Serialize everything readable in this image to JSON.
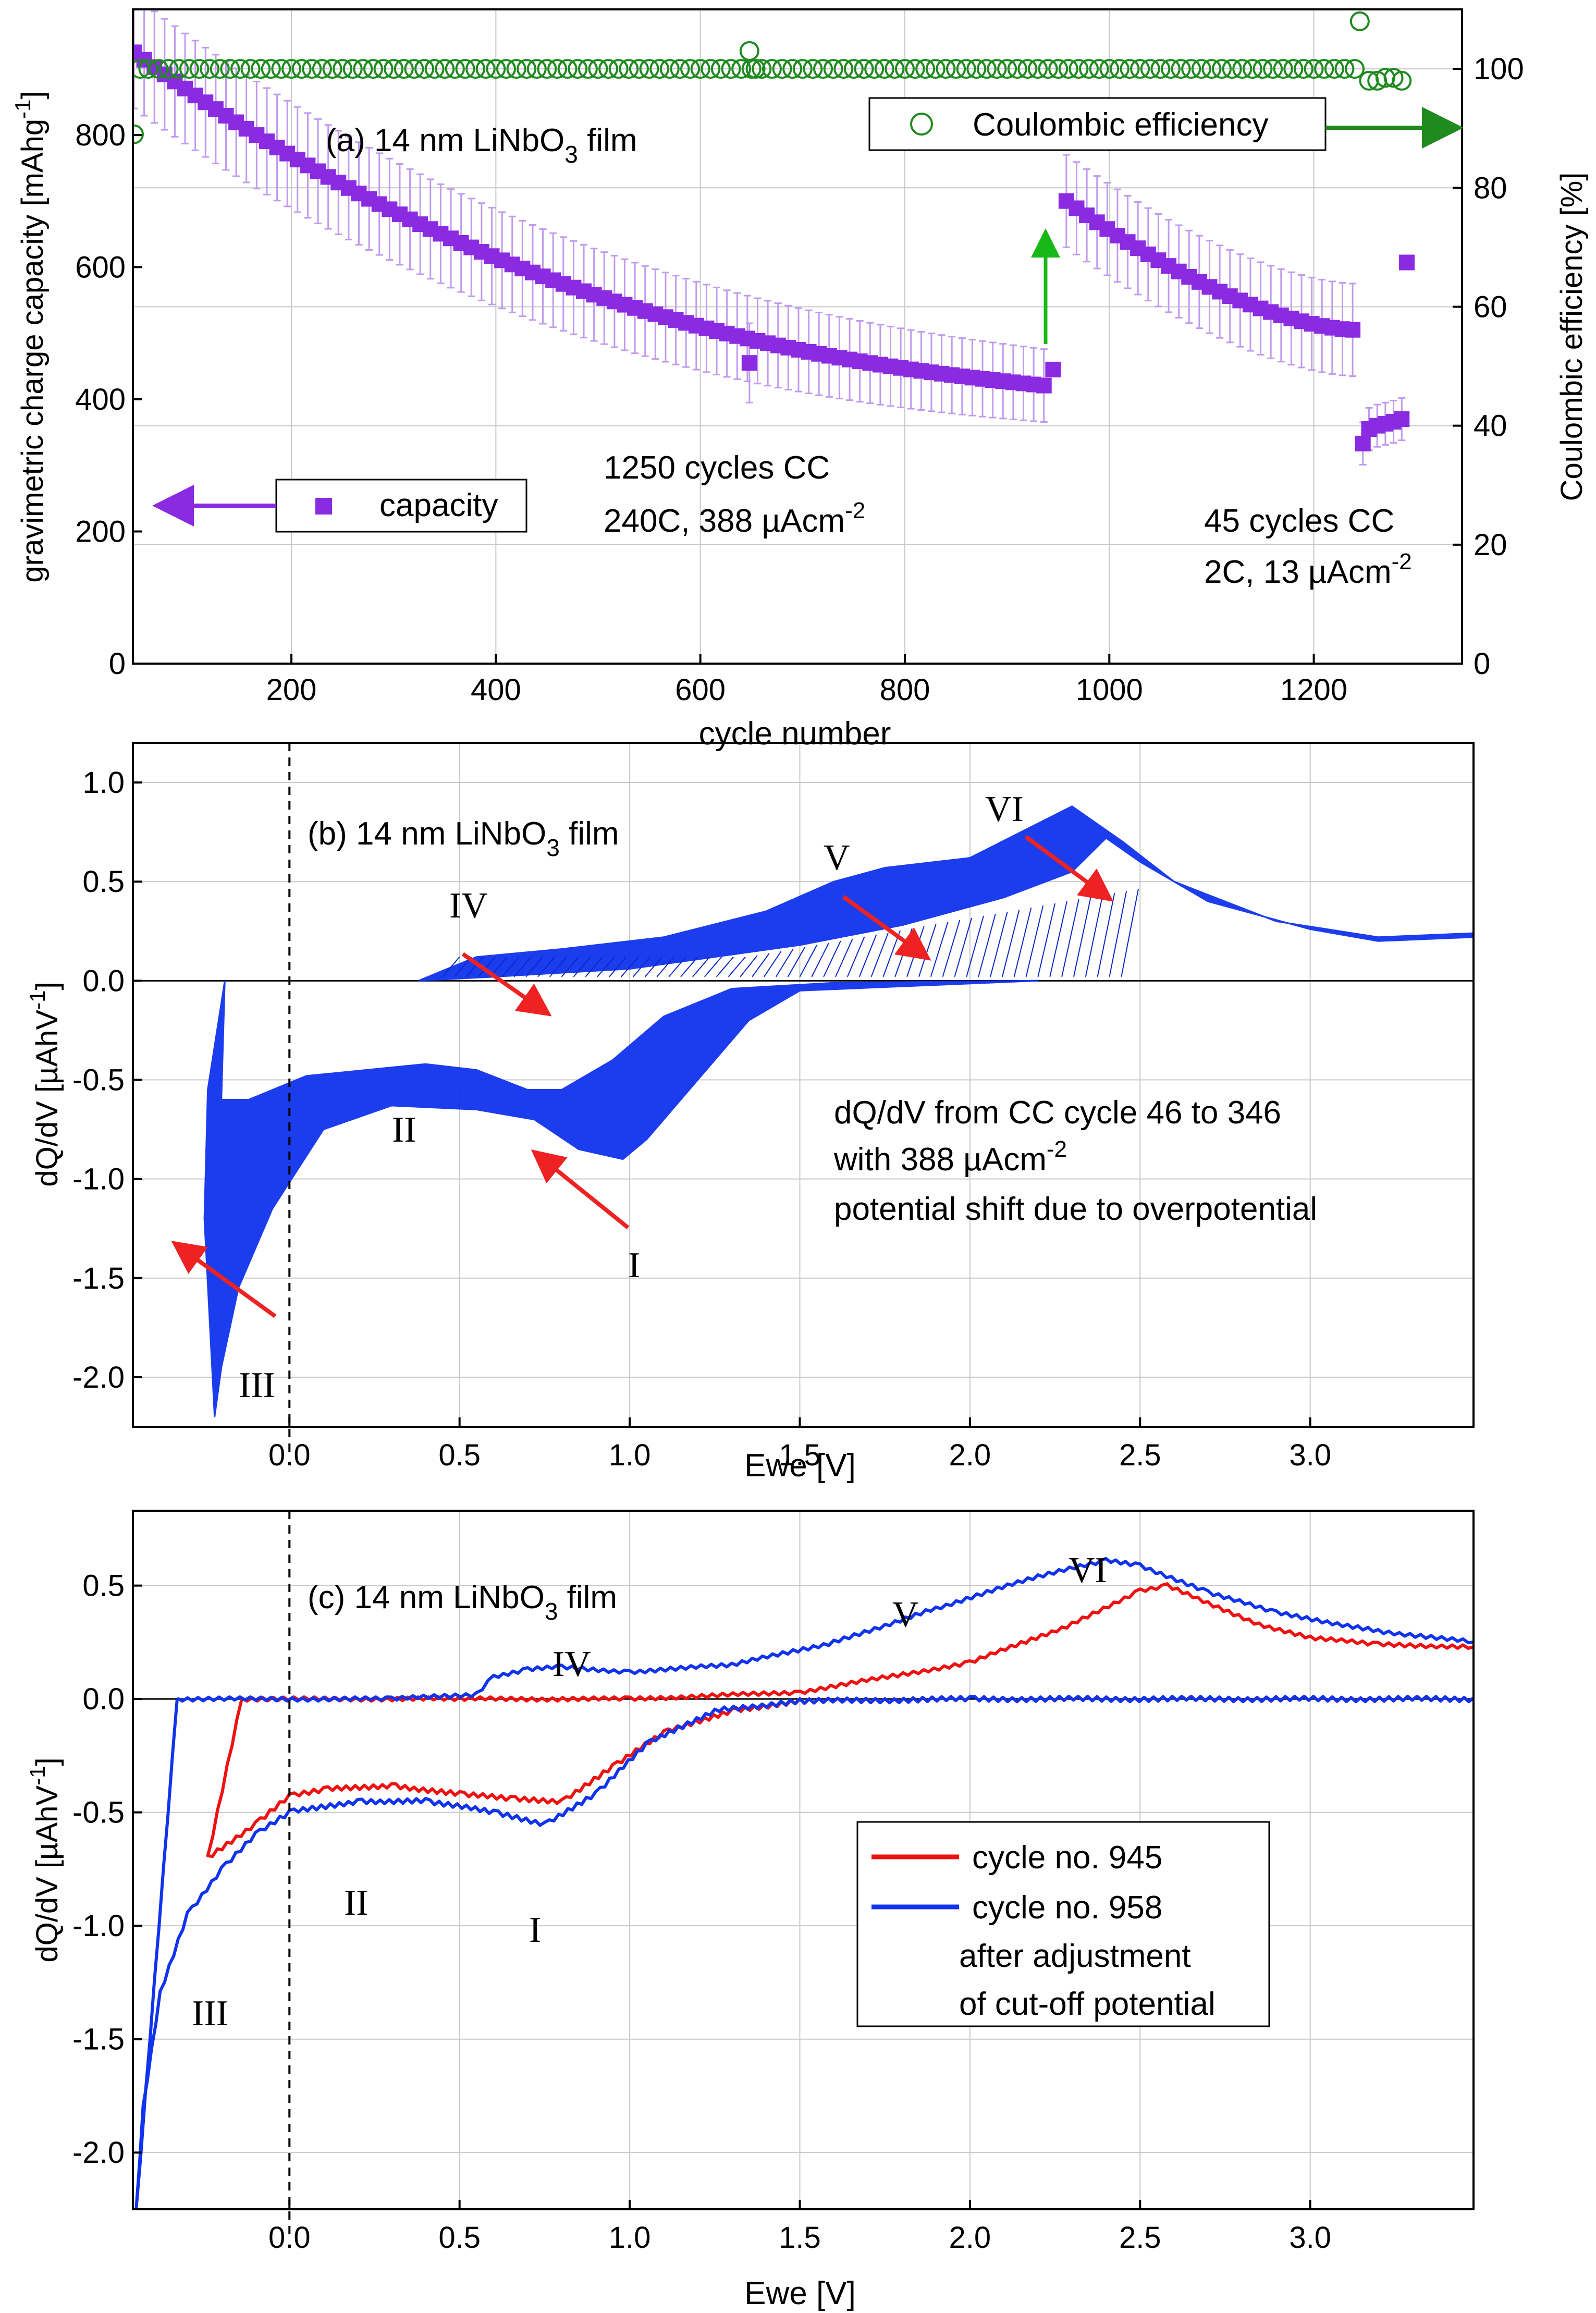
{
  "colors": {
    "capacity": "#8a2be2",
    "capacity_err": "#c09af2",
    "coulombic": "#1f8a1f",
    "arrow_green": "#17b817",
    "arrow_red": "#ee2222",
    "blue": "#1033ee",
    "red": "#ee1111"
  },
  "chart_data": [
    {
      "id": "a",
      "type": "scatter",
      "title_prefix": "(a) 14 nm LiNbO",
      "title_sub": "3",
      "title_suffix": " film",
      "xlabel": "cycle number",
      "ylabel": "gravimetric charge capacity [mAhg",
      "ylabel_sup": "-1",
      "ylabel_end": "]",
      "y2label": "Coulombic efficiency [%]",
      "xlim": [
        45,
        1345
      ],
      "ylim": [
        0,
        990
      ],
      "y2lim": [
        0,
        110
      ],
      "xticks": [
        200,
        400,
        600,
        800,
        1000,
        1200
      ],
      "yticks": [
        0,
        200,
        400,
        600,
        800
      ],
      "y2ticks": [
        0,
        20,
        40,
        60,
        80,
        100
      ],
      "legend_capacity": "capacity",
      "legend_coulombic": "Coulombic efficiency",
      "annot_1250_line1": "1250 cycles CC",
      "annot_1250_line2a": "240C, 388 µAcm",
      "annot_1250_line2sup": "-2",
      "annot_45_line1": "45 cycles CC",
      "annot_45_line2a": "2C, 13 µAcm",
      "annot_45_line2sup": "-2",
      "capacity_segment1": {
        "x_start": 46,
        "x_end": 941,
        "y_start": 925,
        "y_end": 420
      },
      "capacity_outlier": {
        "x": 648,
        "y": 455
      },
      "capacity_jump_point": {
        "x": 945,
        "y": 445
      },
      "capacity_segment2": {
        "x_start": 958,
        "x_end": 1240,
        "y_start": 700,
        "y_end": 505
      },
      "capacity_segment3": [
        [
          1248,
          333
        ],
        [
          1254,
          355
        ],
        [
          1262,
          360
        ],
        [
          1270,
          363
        ],
        [
          1278,
          366
        ],
        [
          1286,
          370
        ]
      ],
      "capacity_outlier2": {
        "x": 1291,
        "y": 607
      },
      "coulombic_main": 100,
      "coulombic_outliers": [
        [
          46,
          89
        ],
        [
          52,
          100
        ],
        [
          648,
          103
        ],
        [
          654,
          100
        ],
        [
          1245,
          108
        ],
        [
          1254,
          98
        ],
        [
          1262,
          98
        ],
        [
          1270,
          98.5
        ],
        [
          1278,
          98.5
        ],
        [
          1286,
          98
        ]
      ]
    },
    {
      "id": "b",
      "type": "line",
      "title_prefix": "(b) 14 nm LiNbO",
      "title_sub": "3",
      "title_suffix": " film",
      "xlabel": "Ewe [V]",
      "ylabel": "dQ/dV  [µAhV",
      "ylabel_sup": "-1",
      "ylabel_end": "]",
      "xlim": [
        -0.46,
        3.48
      ],
      "ylim": [
        -2.25,
        1.2
      ],
      "xticks": [
        "0.0",
        "0.5",
        "1.0",
        "1.5",
        "2.0",
        "2.5",
        "3.0"
      ],
      "yticks": [
        "1.0",
        "0.5",
        "0.0",
        "-0.5",
        "-1.0",
        "-1.5",
        "-2.0"
      ],
      "annotation_lines": [
        "dQ/dV from CC cycle 46 to 346",
        "with 388 µAcm",
        "potential shift due to overpotential"
      ],
      "annotation_sup": "-2",
      "peak_labels": [
        "I",
        "II",
        "III",
        "IV",
        "V",
        "VI"
      ],
      "band_upper_top": [
        [
          0.38,
          0.0
        ],
        [
          0.45,
          0.05
        ],
        [
          0.55,
          0.12
        ],
        [
          0.8,
          0.16
        ],
        [
          1.1,
          0.22
        ],
        [
          1.4,
          0.35
        ],
        [
          1.6,
          0.5
        ],
        [
          1.75,
          0.57
        ],
        [
          2.0,
          0.62
        ],
        [
          2.15,
          0.75
        ],
        [
          2.3,
          0.88
        ],
        [
          2.45,
          0.7
        ],
        [
          2.6,
          0.5
        ],
        [
          2.9,
          0.3
        ],
        [
          3.2,
          0.22
        ],
        [
          3.48,
          0.24
        ]
      ],
      "band_upper_bottom": [
        [
          0.38,
          0.0
        ],
        [
          0.6,
          0.02
        ],
        [
          1.0,
          0.06
        ],
        [
          1.5,
          0.18
        ],
        [
          1.8,
          0.28
        ],
        [
          2.1,
          0.42
        ],
        [
          2.3,
          0.55
        ],
        [
          2.4,
          0.72
        ],
        [
          2.5,
          0.6
        ],
        [
          2.7,
          0.4
        ],
        [
          3.0,
          0.26
        ],
        [
          3.2,
          0.2
        ],
        [
          3.48,
          0.22
        ]
      ],
      "band_lower_top": [
        [
          -0.24,
          -0.55
        ],
        [
          -0.19,
          0.0
        ],
        [
          -0.2,
          -0.6
        ],
        [
          -0.12,
          -0.6
        ],
        [
          0.05,
          -0.48
        ],
        [
          0.4,
          -0.42
        ],
        [
          0.55,
          -0.45
        ],
        [
          0.7,
          -0.55
        ],
        [
          0.8,
          -0.55
        ],
        [
          0.95,
          -0.4
        ],
        [
          1.1,
          -0.18
        ],
        [
          1.3,
          -0.04
        ],
        [
          1.6,
          -0.01
        ],
        [
          2.2,
          0.0
        ]
      ],
      "band_lower_bottom": [
        [
          2.2,
          0.0
        ],
        [
          1.5,
          -0.05
        ],
        [
          1.35,
          -0.2
        ],
        [
          1.2,
          -0.5
        ],
        [
          1.05,
          -0.8
        ],
        [
          0.98,
          -0.9
        ],
        [
          0.85,
          -0.85
        ],
        [
          0.72,
          -0.7
        ],
        [
          0.55,
          -0.65
        ],
        [
          0.3,
          -0.63
        ],
        [
          0.1,
          -0.75
        ],
        [
          -0.05,
          -1.15
        ],
        [
          -0.15,
          -1.55
        ],
        [
          -0.2,
          -1.95
        ],
        [
          -0.22,
          -2.2
        ],
        [
          -0.25,
          -1.2
        ]
      ]
    },
    {
      "id": "c",
      "type": "line",
      "title_prefix": "(c) 14 nm LiNbO",
      "title_sub": "3",
      "title_suffix": " film",
      "xlabel": "Ewe [V]",
      "ylabel": "dQ/dV  [µAhV",
      "ylabel_sup": "-1",
      "ylabel_end": "]",
      "xlim": [
        -0.46,
        3.48
      ],
      "ylim": [
        -2.25,
        0.83
      ],
      "xticks": [
        "0.0",
        "0.5",
        "1.0",
        "1.5",
        "2.0",
        "2.5",
        "3.0"
      ],
      "yticks": [
        "0.5",
        "0.0",
        "-0.5",
        "-1.0",
        "-1.5",
        "-2.0"
      ],
      "legend": [
        "cycle no. 945",
        "cycle no. 958",
        "after adjustment",
        "of cut-off potential"
      ],
      "peak_labels": [
        "I",
        "II",
        "III",
        "IV",
        "V",
        "VI"
      ],
      "series": [
        {
          "name": "cycle no. 945",
          "charge": [
            [
              -0.14,
              0.0
            ],
            [
              0.5,
              0.0
            ],
            [
              1.0,
              0.0
            ],
            [
              1.5,
              0.03
            ],
            [
              2.0,
              0.16
            ],
            [
              2.3,
              0.33
            ],
            [
              2.5,
              0.48
            ],
            [
              2.58,
              0.5
            ],
            [
              2.7,
              0.42
            ],
            [
              2.85,
              0.33
            ],
            [
              3.0,
              0.27
            ],
            [
              3.2,
              0.24
            ],
            [
              3.48,
              0.23
            ]
          ],
          "discharge": [
            [
              3.48,
              0.0
            ],
            [
              2.0,
              0.0
            ],
            [
              1.5,
              -0.01
            ],
            [
              1.3,
              -0.05
            ],
            [
              1.1,
              -0.15
            ],
            [
              0.95,
              -0.3
            ],
            [
              0.8,
              -0.45
            ],
            [
              0.65,
              -0.44
            ],
            [
              0.5,
              -0.42
            ],
            [
              0.3,
              -0.38
            ],
            [
              0.1,
              -0.4
            ],
            [
              0.0,
              -0.43
            ],
            [
              -0.1,
              -0.55
            ],
            [
              -0.24,
              -0.7
            ],
            [
              -0.14,
              0.0
            ]
          ]
        },
        {
          "name": "cycle no. 958",
          "charge": [
            [
              -0.33,
              0.0
            ],
            [
              0.3,
              0.0
            ],
            [
              0.55,
              0.02
            ],
            [
              0.6,
              0.1
            ],
            [
              0.7,
              0.13
            ],
            [
              0.8,
              0.14
            ],
            [
              1.0,
              0.12
            ],
            [
              1.3,
              0.15
            ],
            [
              1.6,
              0.25
            ],
            [
              1.9,
              0.4
            ],
            [
              2.2,
              0.54
            ],
            [
              2.4,
              0.61
            ],
            [
              2.5,
              0.59
            ],
            [
              2.7,
              0.47
            ],
            [
              2.9,
              0.38
            ],
            [
              3.2,
              0.3
            ],
            [
              3.48,
              0.25
            ]
          ],
          "discharge": [
            [
              3.48,
              0.0
            ],
            [
              2.0,
              0.0
            ],
            [
              1.5,
              -0.01
            ],
            [
              1.25,
              -0.05
            ],
            [
              1.05,
              -0.2
            ],
            [
              0.9,
              -0.42
            ],
            [
              0.75,
              -0.55
            ],
            [
              0.6,
              -0.5
            ],
            [
              0.4,
              -0.45
            ],
            [
              0.2,
              -0.45
            ],
            [
              0.0,
              -0.5
            ],
            [
              -0.1,
              -0.6
            ],
            [
              -0.2,
              -0.75
            ],
            [
              -0.3,
              -0.95
            ],
            [
              -0.38,
              -1.3
            ],
            [
              -0.43,
              -1.8
            ],
            [
              -0.45,
              -2.25
            ],
            [
              -0.33,
              0.0
            ]
          ]
        }
      ]
    }
  ]
}
